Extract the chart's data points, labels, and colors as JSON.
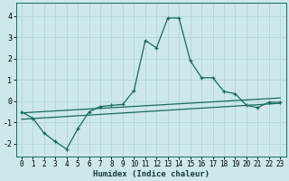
{
  "title": "",
  "xlabel": "Humidex (Indice chaleur)",
  "ylabel": "",
  "bg_color": "#cce8e8",
  "line_color": "#1a6b5a",
  "grid_color": "#b8d8d8",
  "xlim": [
    -0.5,
    23.5
  ],
  "ylim": [
    -2.6,
    4.6
  ],
  "yticks": [
    -2,
    -1,
    0,
    1,
    2,
    3,
    4
  ],
  "xticks": [
    0,
    1,
    2,
    3,
    4,
    5,
    6,
    7,
    8,
    9,
    10,
    11,
    12,
    13,
    14,
    15,
    16,
    17,
    18,
    19,
    20,
    21,
    22,
    23
  ],
  "main_line_x": [
    0,
    1,
    2,
    3,
    4,
    5,
    6,
    7,
    8,
    9,
    10,
    11,
    12,
    13,
    14,
    15,
    16,
    17,
    18,
    19,
    20,
    21,
    22,
    23
  ],
  "main_line_y": [
    -0.5,
    -0.8,
    -1.5,
    -1.9,
    -2.25,
    -1.3,
    -0.5,
    -0.25,
    -0.2,
    -0.15,
    0.5,
    2.85,
    2.5,
    3.9,
    3.9,
    1.9,
    1.1,
    1.1,
    0.45,
    0.35,
    -0.2,
    -0.3,
    -0.05,
    -0.05
  ],
  "line2_x": [
    0,
    23
  ],
  "line2_y": [
    -0.55,
    0.15
  ],
  "line3_x": [
    0,
    23
  ],
  "line3_y": [
    -0.85,
    -0.1
  ],
  "tick_fontsize": 5.5,
  "xlabel_fontsize": 6.5
}
